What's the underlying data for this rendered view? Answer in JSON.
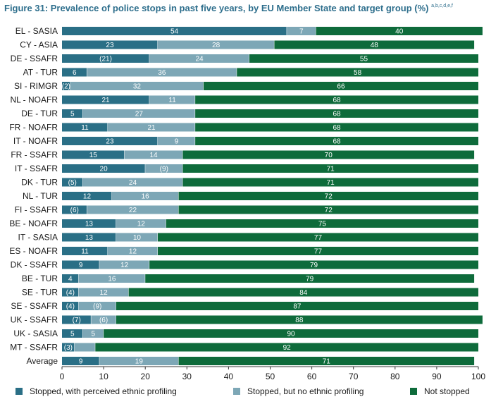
{
  "figure": {
    "title": "Figure 31:  Prevalence of police stops in past five years, by EU Member State and target group (%)",
    "superscript": "a,b,c,d,e,f"
  },
  "colors": {
    "profiling": "#2a6f86",
    "no_profiling": "#7da7b6",
    "not_stopped": "#0e6b3b"
  },
  "chart_data": {
    "type": "bar",
    "orientation": "horizontal",
    "stacked": true,
    "title": "Figure 31:  Prevalence of police stops in past five years, by EU Member State and target group (%)",
    "xlim": [
      0,
      100
    ],
    "xticks": [
      0,
      10,
      20,
      30,
      40,
      50,
      60,
      70,
      80,
      90,
      100
    ],
    "grid": false,
    "legend_position": "bottom",
    "categories": [
      "EL - SASIA",
      "CY - ASIA",
      "DE - SSAFR",
      "AT - TUR",
      "SI - RIMGR",
      "NL - NOAFR",
      "DE - TUR",
      "FR - NOAFR",
      "IT - NOAFR",
      "FR - SSAFR",
      "IT - SSAFR",
      "DK - TUR",
      "NL - TUR",
      "FI - SSAFR",
      "BE - NOAFR",
      "IT - SASIA",
      "ES - NOAFR",
      "DK - SSAFR",
      "BE - TUR",
      "SE - TUR",
      "SE - SSAFR",
      "UK - SSAFR",
      "UK - SASIA",
      "MT - SSAFR",
      "Average"
    ],
    "series": [
      {
        "name": "Stopped, with perceived ethnic profiling",
        "color": "#2a6f86",
        "values": [
          54,
          23,
          21,
          6,
          2,
          21,
          5,
          11,
          23,
          15,
          20,
          5,
          12,
          6,
          13,
          13,
          11,
          9,
          4,
          4,
          4,
          7,
          5,
          3,
          9
        ],
        "labels": [
          "54",
          "23",
          "(21)",
          "6",
          "(2)",
          "21",
          "5",
          "11",
          "23",
          "15",
          "20",
          "(5)",
          "12",
          "(6)",
          "13",
          "13",
          "11",
          "9",
          "4",
          "(4)",
          "(4)",
          "(7)",
          "5",
          "(3)",
          "9"
        ]
      },
      {
        "name": "Stopped, but no ethnic profiling",
        "color": "#7da7b6",
        "values": [
          7,
          28,
          24,
          36,
          32,
          11,
          27,
          21,
          9,
          14,
          9,
          24,
          16,
          22,
          12,
          10,
          12,
          12,
          16,
          12,
          9,
          6,
          5,
          5,
          19
        ],
        "labels": [
          "7",
          "28",
          "24",
          "36",
          "32",
          "11",
          "27",
          "21",
          "9",
          "14",
          "(9)",
          "24",
          "16",
          "22",
          "12",
          "10",
          "12",
          "12",
          "16",
          "12",
          "(9)",
          "(6)",
          "5",
          "",
          "19"
        ]
      },
      {
        "name": "Not stopped",
        "color": "#0e6b3b",
        "values": [
          40,
          48,
          55,
          58,
          66,
          68,
          68,
          68,
          68,
          70,
          71,
          71,
          72,
          72,
          75,
          77,
          77,
          79,
          79,
          84,
          87,
          88,
          90,
          92,
          71
        ],
        "labels": [
          "40",
          "48",
          "55",
          "58",
          "66",
          "68",
          "68",
          "68",
          "68",
          "70",
          "71",
          "71",
          "72",
          "72",
          "75",
          "77",
          "77",
          "79",
          "79",
          "84",
          "87",
          "88",
          "90",
          "92",
          "71"
        ]
      }
    ]
  }
}
